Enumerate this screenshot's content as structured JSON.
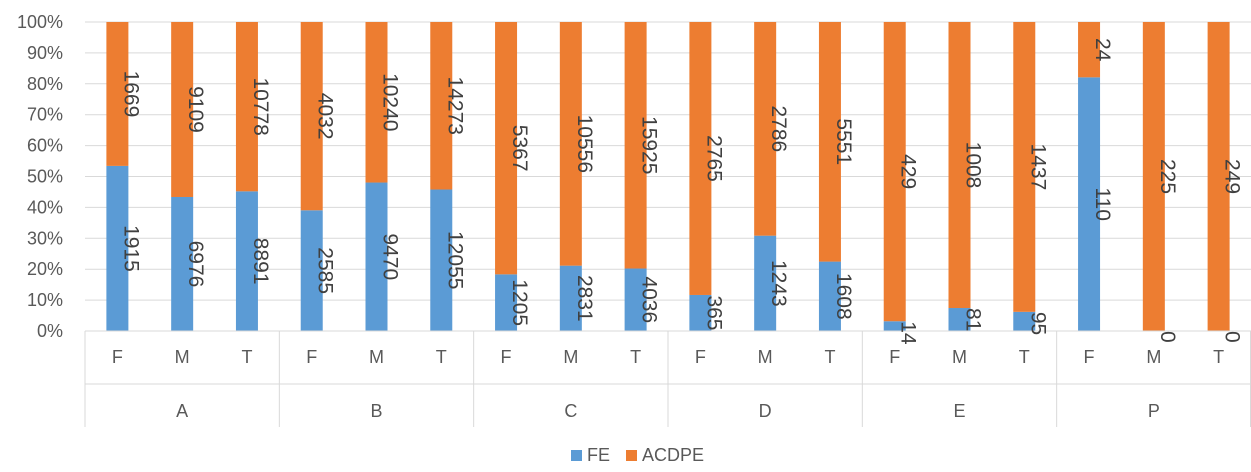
{
  "chart_data": {
    "type": "bar",
    "stacked": true,
    "normalized": true,
    "title": "",
    "xlabel": "",
    "ylabel": "",
    "ylim": [
      0,
      100
    ],
    "y_ticks": [
      "0%",
      "10%",
      "20%",
      "30%",
      "40%",
      "50%",
      "60%",
      "70%",
      "80%",
      "90%",
      "100%"
    ],
    "grid": true,
    "legend_position": "bottom",
    "groups": [
      {
        "name": "A",
        "categories": [
          "F",
          "M",
          "T"
        ]
      },
      {
        "name": "B",
        "categories": [
          "F",
          "M",
          "T"
        ]
      },
      {
        "name": "C",
        "categories": [
          "F",
          "M",
          "T"
        ]
      },
      {
        "name": "D",
        "categories": [
          "F",
          "M",
          "T"
        ]
      },
      {
        "name": "E",
        "categories": [
          "F",
          "M",
          "T"
        ]
      },
      {
        "name": "P",
        "categories": [
          "F",
          "M",
          "T"
        ]
      }
    ],
    "series": [
      {
        "name": "FE",
        "color": "#5b9bd5",
        "values": [
          1915,
          6976,
          8891,
          2585,
          9470,
          12055,
          1205,
          2831,
          4036,
          365,
          1243,
          1608,
          14,
          81,
          95,
          110,
          0,
          0
        ]
      },
      {
        "name": "ACDPE",
        "color": "#ed7d31",
        "values": [
          1669,
          9109,
          10778,
          4032,
          10240,
          14273,
          5367,
          10556,
          15925,
          2765,
          2786,
          5551,
          429,
          1008,
          1437,
          24,
          225,
          249
        ]
      }
    ]
  }
}
